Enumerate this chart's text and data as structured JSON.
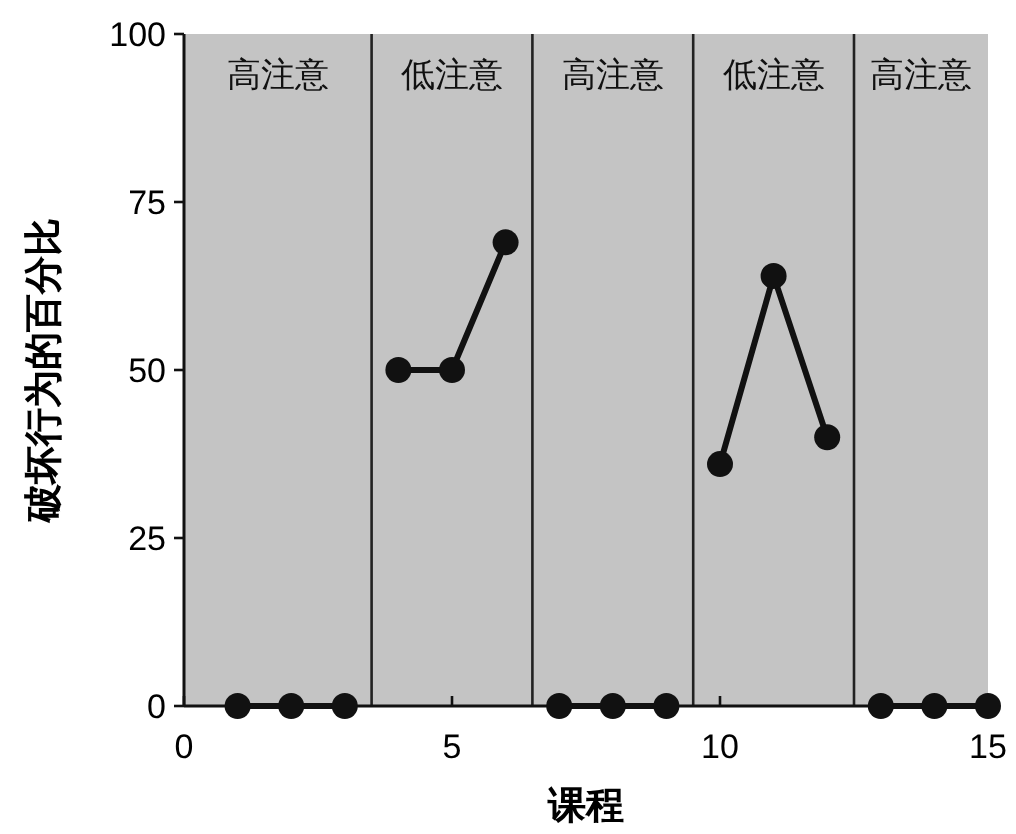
{
  "chart_data": {
    "type": "line",
    "xlabel": "课程",
    "ylabel": "破坏行为的百分比",
    "xlim": [
      0,
      15
    ],
    "ylim": [
      0,
      100
    ],
    "xticks": [
      0,
      5,
      10,
      15
    ],
    "yticks": [
      0,
      25,
      50,
      75,
      100
    ],
    "marker": "circle",
    "line_style": "solid",
    "grid": false,
    "series": [
      {
        "color": "#111111",
        "x": [
          1,
          2,
          3
        ],
        "values": [
          0,
          0,
          0
        ]
      },
      {
        "color": "#111111",
        "x": [
          4,
          5,
          6
        ],
        "values": [
          50,
          50,
          69
        ]
      },
      {
        "color": "#111111",
        "x": [
          7,
          8,
          9
        ],
        "values": [
          0,
          0,
          0
        ]
      },
      {
        "color": "#111111",
        "x": [
          10,
          11,
          12
        ],
        "values": [
          36,
          64,
          40
        ]
      },
      {
        "color": "#111111",
        "x": [
          13,
          14,
          15
        ],
        "values": [
          0,
          0,
          0
        ]
      }
    ],
    "bands": [
      {
        "axis": "x",
        "from": 0,
        "to": 3.5,
        "label": "高注意",
        "color": "#c4c4c4"
      },
      {
        "axis": "x",
        "from": 3.5,
        "to": 6.5,
        "label": "低注意",
        "color": "#c4c4c4"
      },
      {
        "axis": "x",
        "from": 6.5,
        "to": 9.5,
        "label": "高注意",
        "color": "#c4c4c4"
      },
      {
        "axis": "x",
        "from": 9.5,
        "to": 12.5,
        "label": "低注意",
        "color": "#c4c4c4"
      },
      {
        "axis": "x",
        "from": 12.5,
        "to": 15,
        "label": "高注意",
        "color": "#c4c4c4"
      }
    ],
    "ref_lines": [
      {
        "axis": "x",
        "value": 3.5,
        "color": "#222222",
        "line_style": "solid"
      },
      {
        "axis": "x",
        "value": 6.5,
        "color": "#222222",
        "line_style": "solid"
      },
      {
        "axis": "x",
        "value": 9.5,
        "color": "#222222",
        "line_style": "solid"
      },
      {
        "axis": "x",
        "value": 12.5,
        "color": "#222222",
        "line_style": "solid"
      }
    ]
  }
}
